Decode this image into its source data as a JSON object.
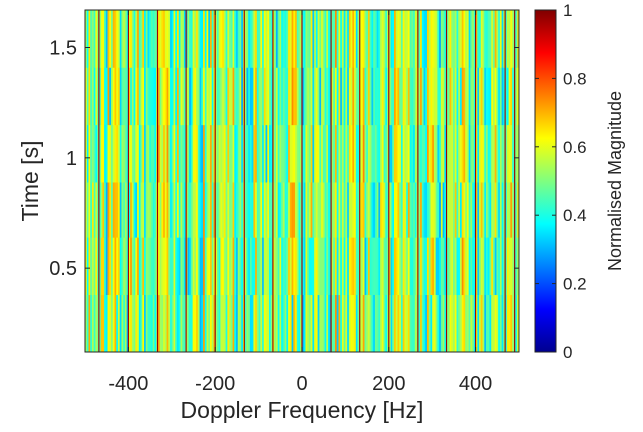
{
  "chart_data": {
    "type": "heatmap",
    "title": "",
    "xlabel": "Doppler Frequency [Hz]",
    "ylabel": "Time [s]",
    "colorbar_label": "Normalised Magnitude",
    "colormap": "jet",
    "xlim": [
      -500,
      500
    ],
    "ylim": [
      0.12,
      1.67
    ],
    "clim": [
      0,
      1
    ],
    "x_ticks": [
      {
        "value": -400,
        "label": "-400"
      },
      {
        "value": -200,
        "label": "-200"
      },
      {
        "value": 0,
        "label": "0"
      },
      {
        "value": 200,
        "label": "200"
      },
      {
        "value": 400,
        "label": "400"
      }
    ],
    "y_ticks": [
      {
        "value": 0.5,
        "label": "0.5"
      },
      {
        "value": 1,
        "label": "1"
      },
      {
        "value": 1.5,
        "label": "1.5"
      }
    ],
    "colorbar_ticks": [
      {
        "value": 0,
        "label": "0"
      },
      {
        "value": 0.2,
        "label": "0.2"
      },
      {
        "value": 0.4,
        "label": "0.4"
      },
      {
        "value": 0.6,
        "label": "0.6"
      },
      {
        "value": 0.8,
        "label": "0.8"
      },
      {
        "value": 1,
        "label": "1"
      }
    ],
    "time_bin_edges": [
      0.12,
      0.38,
      0.64,
      0.89,
      1.15,
      1.41,
      1.67
    ],
    "frequency_bin_width_hz": 4,
    "peak_frequencies_hz": [
      -468,
      -400,
      -333,
      -267,
      -200,
      -133,
      -67,
      0,
      67,
      133,
      200,
      267,
      333,
      400,
      468,
      490
    ],
    "peak_magnitude": 0.97,
    "background_magnitude_range": [
      0.35,
      0.68
    ]
  }
}
